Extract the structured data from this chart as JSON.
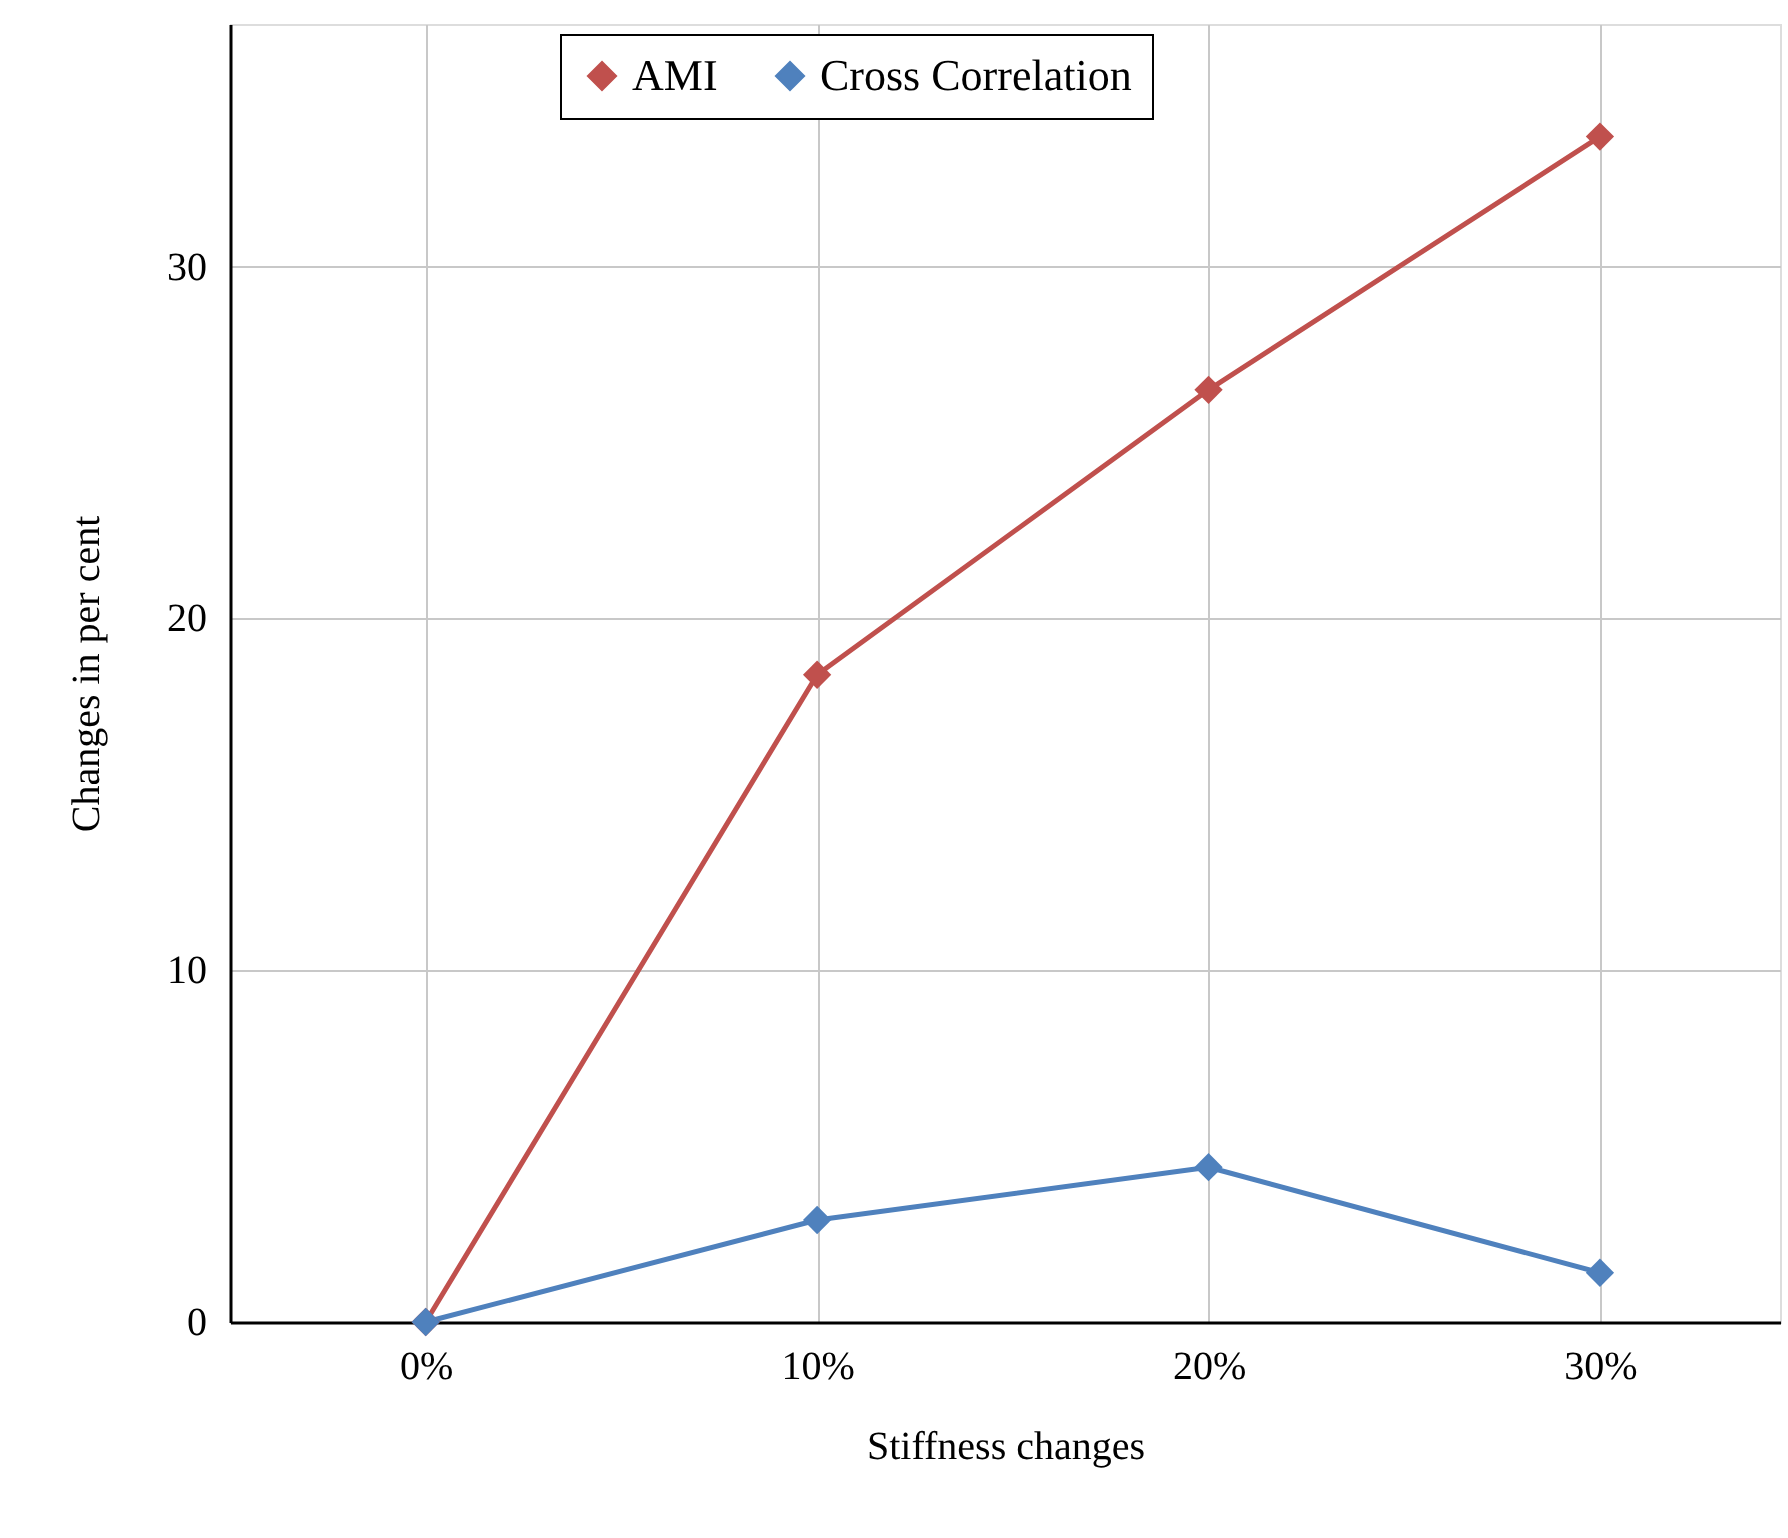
{
  "chart_data": {
    "type": "line",
    "xlabel": "Stiffness changes",
    "ylabel": "Changes in per cent",
    "x": [
      0,
      10,
      20,
      30
    ],
    "series": [
      {
        "name": "AMI",
        "color": "#c0504d",
        "values": [
          0,
          18.4,
          26.5,
          33.7
        ]
      },
      {
        "name": "Cross Correlation",
        "color": "#4f81bd",
        "values": [
          0,
          2.9,
          4.4,
          1.4
        ]
      }
    ],
    "xlim": [
      -5,
      34.6
    ],
    "ylim": [
      0,
      36.9
    ],
    "xticks": [
      {
        "value": 0,
        "label": "0%"
      },
      {
        "value": 10,
        "label": "10%"
      },
      {
        "value": 20,
        "label": "20%"
      },
      {
        "value": 30,
        "label": "30%"
      }
    ],
    "yticks": [
      0,
      10,
      20,
      30
    ],
    "grid": true,
    "legend": "top",
    "marker": "diamond",
    "line_style": "solid"
  }
}
